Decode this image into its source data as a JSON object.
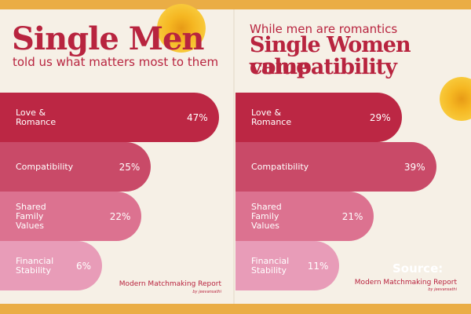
{
  "left": {
    "title": "Single Men",
    "subtitle": "told us what matters most to them"
  },
  "right": {
    "subtitle": "While men are romantics",
    "title_line1": "Single Women value",
    "title_line2": "compatibility"
  },
  "chart_data": [
    {
      "type": "bar",
      "orientation": "horizontal",
      "categories": [
        "Love & Romance",
        "Compatibility",
        "Shared Family Values",
        "Financial Stability"
      ],
      "values": [
        47,
        25,
        22,
        6
      ],
      "labels": [
        "47%",
        "25%",
        "22%",
        "6%"
      ]
    },
    {
      "type": "bar",
      "orientation": "horizontal",
      "categories": [
        "Love & Romance",
        "Compatibility",
        "Shared Family Values",
        "Financial Stability"
      ],
      "values": [
        29,
        39,
        21,
        11
      ],
      "labels": [
        "29%",
        "39%",
        "21%",
        "11%"
      ]
    }
  ],
  "colors": [
    "#bc2744",
    "#c94a68",
    "#dc7290",
    "#e89cb8"
  ],
  "source": {
    "label": "Source:",
    "report": "Modern Matchmaking Report",
    "by": "by jeevansathi"
  }
}
